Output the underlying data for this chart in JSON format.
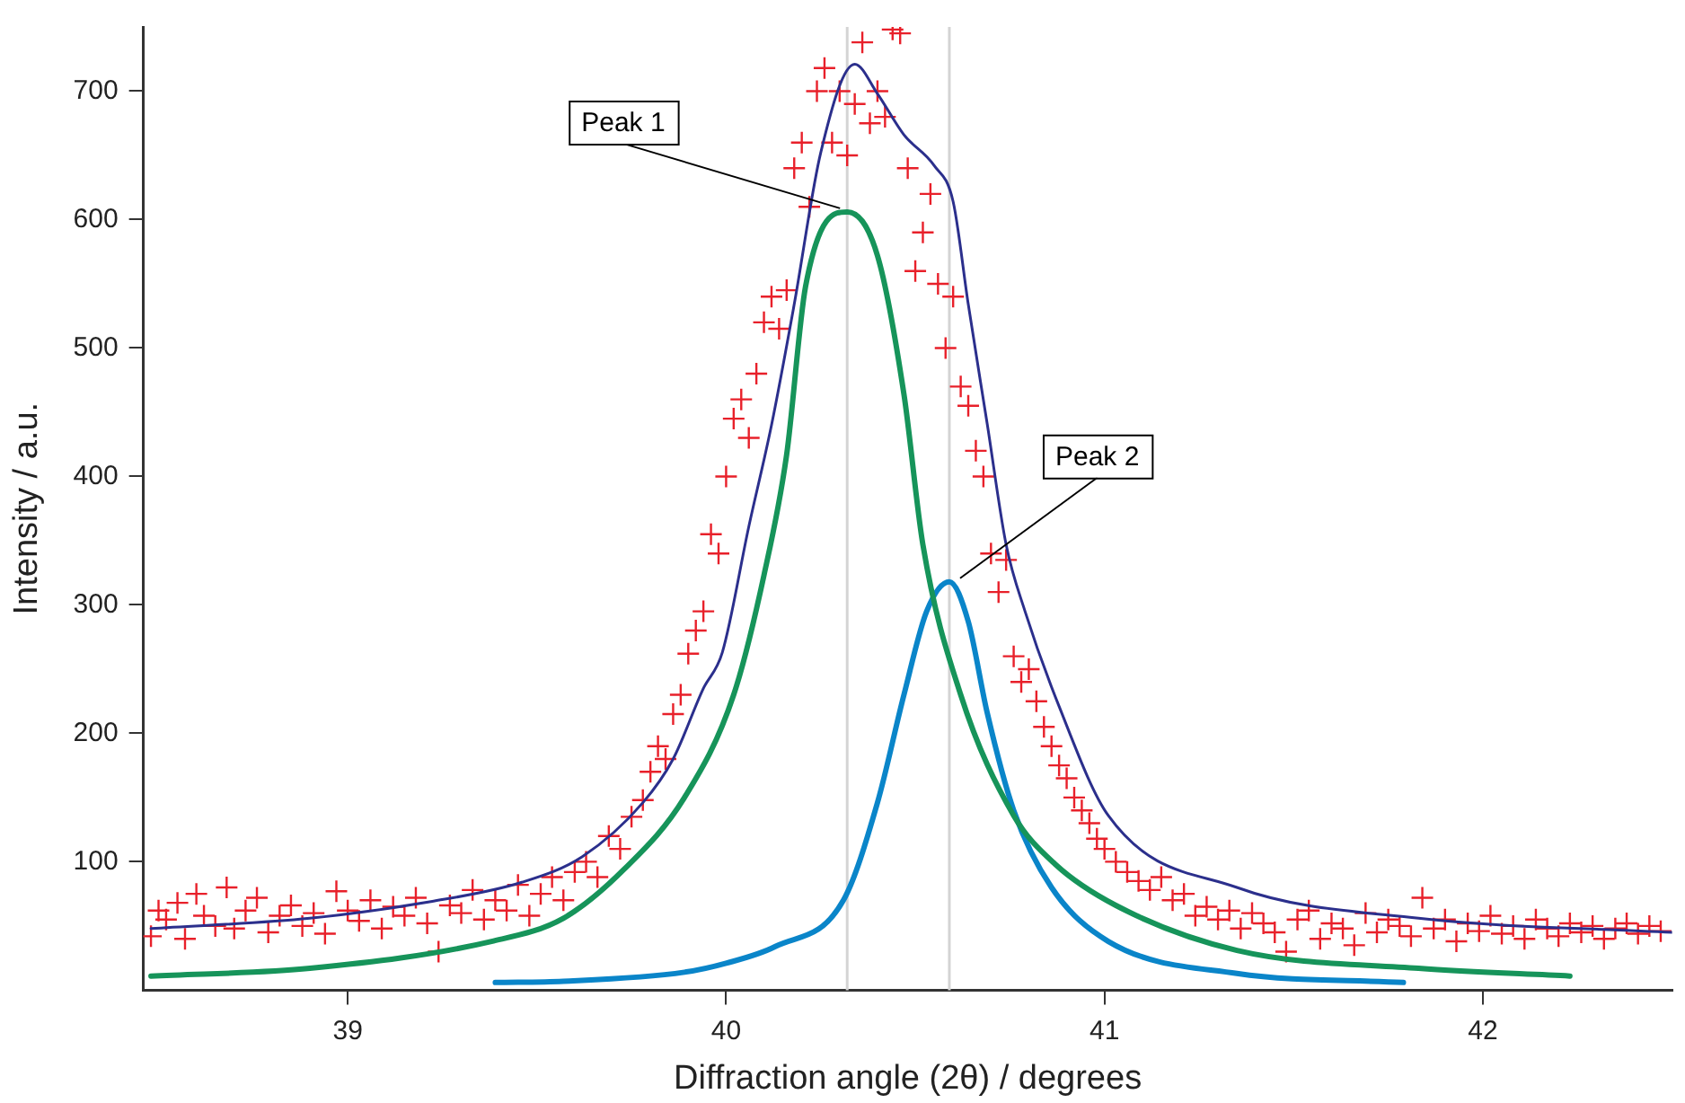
{
  "chart_data": {
    "type": "scatter",
    "xlabel": "Diffraction angle (2θ) / degrees",
    "ylabel": "Intensity / a.u.",
    "xlim": [
      38.46,
      42.5
    ],
    "xticks": [
      39,
      40,
      41,
      42
    ],
    "ylim": [
      0,
      750
    ],
    "yticks": [
      100,
      200,
      300,
      400,
      500,
      600,
      700
    ],
    "legend": false,
    "series": [
      {
        "marker": "cross",
        "color": "#e8202a",
        "x": [
          38.48,
          38.5,
          38.52,
          38.55,
          38.57,
          38.6,
          38.62,
          38.65,
          38.68,
          38.7,
          38.73,
          38.76,
          38.79,
          38.82,
          38.85,
          38.88,
          38.91,
          38.94,
          38.97,
          39.0,
          39.03,
          39.06,
          39.09,
          39.12,
          39.15,
          39.18,
          39.21,
          39.24,
          39.27,
          39.3,
          39.33,
          39.36,
          39.39,
          39.42,
          39.45,
          39.48,
          39.51,
          39.54,
          39.57,
          39.6,
          39.63,
          39.66,
          39.69,
          39.72,
          39.75,
          39.78,
          39.8,
          39.82,
          39.84,
          39.86,
          39.88,
          39.9,
          39.92,
          39.94,
          39.96,
          39.98,
          40.0,
          40.02,
          40.04,
          40.06,
          40.08,
          40.1,
          40.12,
          40.14,
          40.16,
          40.18,
          40.2,
          40.22,
          40.24,
          40.26,
          40.28,
          40.3,
          40.32,
          40.34,
          40.36,
          40.38,
          40.4,
          40.42,
          40.44,
          40.46,
          40.48,
          40.5,
          40.52,
          40.54,
          40.56,
          40.58,
          40.6,
          40.62,
          40.64,
          40.66,
          40.68,
          40.7,
          40.72,
          40.74,
          40.76,
          40.78,
          40.8,
          40.82,
          40.84,
          40.86,
          40.88,
          40.9,
          40.92,
          40.94,
          40.96,
          40.98,
          41.0,
          41.03,
          41.06,
          41.09,
          41.12,
          41.15,
          41.18,
          41.21,
          41.24,
          41.27,
          41.3,
          41.33,
          41.36,
          41.39,
          41.42,
          41.45,
          41.48,
          41.51,
          41.54,
          41.57,
          41.6,
          41.63,
          41.66,
          41.69,
          41.72,
          41.75,
          41.78,
          41.81,
          41.84,
          41.87,
          41.9,
          41.93,
          41.96,
          41.99,
          42.02,
          42.05,
          42.08,
          42.11,
          42.14,
          42.17,
          42.2,
          42.23,
          42.26,
          42.29,
          42.32,
          42.35,
          42.38,
          42.41,
          42.44,
          42.47
        ],
        "values": [
          42,
          62,
          55,
          68,
          40,
          75,
          58,
          50,
          80,
          48,
          62,
          72,
          45,
          58,
          66,
          50,
          60,
          44,
          77,
          62,
          54,
          70,
          48,
          65,
          58,
          72,
          52,
          30,
          66,
          60,
          78,
          55,
          70,
          62,
          82,
          58,
          75,
          88,
          70,
          92,
          100,
          88,
          120,
          110,
          135,
          148,
          170,
          190,
          180,
          215,
          230,
          262,
          280,
          295,
          355,
          340,
          400,
          445,
          460,
          430,
          480,
          520,
          540,
          515,
          545,
          640,
          660,
          610,
          700,
          718,
          660,
          700,
          650,
          690,
          738,
          675,
          700,
          680,
          748,
          745,
          640,
          560,
          590,
          620,
          550,
          500,
          540,
          470,
          455,
          420,
          400,
          340,
          310,
          335,
          260,
          240,
          250,
          225,
          205,
          190,
          175,
          165,
          150,
          140,
          130,
          118,
          110,
          100,
          92,
          85,
          78,
          88,
          70,
          75,
          58,
          65,
          55,
          62,
          48,
          60,
          52,
          45,
          30,
          55,
          62,
          40,
          52,
          48,
          35,
          60,
          45,
          55,
          50,
          42,
          72,
          48,
          55,
          38,
          52,
          46,
          58,
          44,
          50,
          40,
          55,
          48,
          42,
          52,
          45,
          50,
          40,
          48,
          52,
          44,
          50,
          46
        ]
      },
      {
        "type": "line",
        "marker": "none",
        "color": "#2b2f8c",
        "x": [
          38.48,
          38.9,
          39.22,
          39.46,
          39.62,
          39.78,
          39.86,
          39.94,
          39.99,
          40.06,
          40.12,
          40.18,
          40.25,
          40.34,
          40.4,
          40.47,
          40.55,
          40.6,
          40.64,
          40.69,
          40.74,
          40.79,
          40.88,
          41.01,
          41.35,
          41.83,
          42.5
        ],
        "values": [
          48,
          56,
          69,
          84,
          104,
          146,
          180,
          235,
          263,
          361,
          440,
          534,
          652,
          721,
          698,
          666,
          642,
          614,
          534,
          441,
          347,
          295,
          221,
          136,
          80,
          56,
          45
        ]
      },
      {
        "type": "line",
        "marker": "none",
        "color": "#16945a",
        "x": [
          38.48,
          38.9,
          39.38,
          39.57,
          39.73,
          39.89,
          40.02,
          40.1,
          40.16,
          40.21,
          40.32,
          40.4,
          40.47,
          40.52,
          40.62,
          40.76,
          40.87,
          41.03,
          41.35,
          41.83,
          42.23
        ],
        "values": [
          11,
          17,
          38,
          56,
          94,
          150,
          230,
          323,
          417,
          548,
          606,
          572,
          464,
          347,
          230,
          136,
          98,
          66,
          31,
          17,
          11
        ]
      },
      {
        "type": "line",
        "marker": "none",
        "color": "#0a85c9",
        "x": [
          39.39,
          39.57,
          39.89,
          40.0,
          40.13,
          40.31,
          40.4,
          40.47,
          40.53,
          40.59,
          40.64,
          40.69,
          40.76,
          40.86,
          41.01,
          41.35,
          41.79
        ],
        "values": [
          6,
          7,
          14,
          21,
          34,
          70,
          146,
          230,
          295,
          318,
          287,
          216,
          140,
          80,
          38,
          13,
          6
        ]
      }
    ],
    "ref_lines": [
      {
        "axis": "x",
        "value": 40.32,
        "color": "#d4d4d4"
      },
      {
        "axis": "x",
        "value": 40.59,
        "color": "#d4d4d4"
      }
    ],
    "annotations": [
      {
        "text": "Peak 1",
        "x": 40.32,
        "y": 606
      },
      {
        "text": "Peak 2",
        "x": 40.59,
        "y": 318
      }
    ]
  }
}
